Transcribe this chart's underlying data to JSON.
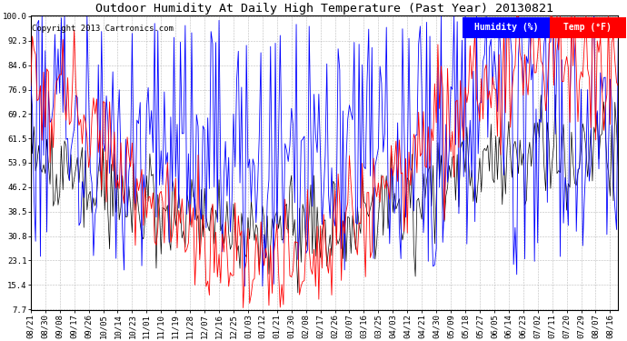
{
  "title": "Outdoor Humidity At Daily High Temperature (Past Year) 20130821",
  "copyright": "Copyright 2013 Cartronics.com",
  "legend_humidity_label": "Humidity (%)",
  "legend_temp_label": "Temp (°F)",
  "humidity_color": "#0000FF",
  "temp_color": "#FF0000",
  "black_color": "#000000",
  "legend_humidity_bg": "#0000FF",
  "legend_temp_bg": "#FF0000",
  "bg_color": "#FFFFFF",
  "plot_bg_color": "#FFFFFF",
  "grid_color": "#BBBBBB",
  "yticks": [
    7.7,
    15.4,
    23.1,
    30.8,
    38.5,
    46.2,
    53.9,
    61.5,
    69.2,
    76.9,
    84.6,
    92.3,
    100.0
  ],
  "ymin": 7.7,
  "ymax": 100.0,
  "title_fontsize": 9.5,
  "copyright_fontsize": 6.5,
  "tick_fontsize": 6.5,
  "legend_fontsize": 7
}
